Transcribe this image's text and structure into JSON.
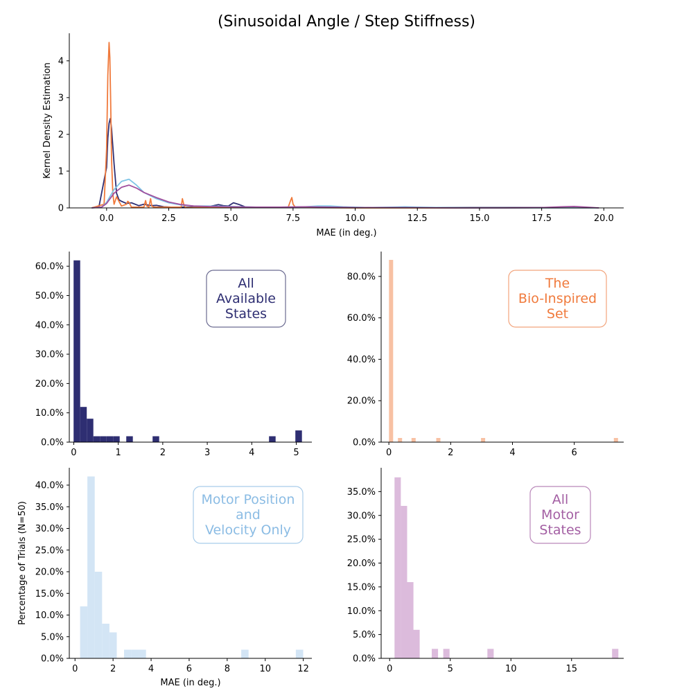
{
  "figure": {
    "title": "(Sinusoidal Angle / Step Stiffness)"
  },
  "chart_data": [
    {
      "id": "kde",
      "type": "line",
      "title": "",
      "xlabel": "MAE (in deg.)",
      "ylabel": "Kernel Density Estimation",
      "xlim": [
        -1.5,
        20.8
      ],
      "ylim": [
        0,
        4.75
      ],
      "xticks": [
        0.0,
        2.5,
        5.0,
        7.5,
        10.0,
        12.5,
        15.0,
        17.5,
        20.0
      ],
      "xtick_labels": [
        "0.0",
        "2.5",
        "5.0",
        "7.5",
        "10.0",
        "12.5",
        "15.0",
        "17.5",
        "20.0"
      ],
      "yticks": [
        0,
        1,
        2,
        3,
        4
      ],
      "ytick_labels": [
        "0",
        "1",
        "2",
        "3",
        "4"
      ],
      "grid": false,
      "series": [
        {
          "color": "#2e2e72",
          "x": [
            -0.6,
            -0.3,
            0.0,
            0.05,
            0.1,
            0.15,
            0.2,
            0.3,
            0.4,
            0.5,
            0.6,
            0.8,
            1.0,
            1.3,
            1.5,
            1.8,
            2.0,
            2.3,
            2.6,
            3.0,
            3.5,
            4.0,
            4.3,
            4.5,
            4.7,
            4.9,
            5.1,
            5.3,
            5.6,
            6.0,
            8.0,
            10.0,
            12.0,
            14.0,
            16.0,
            18.0,
            19.8
          ],
          "y": [
            0.0,
            0.05,
            1.1,
            1.9,
            2.3,
            2.43,
            2.15,
            1.2,
            0.4,
            0.22,
            0.18,
            0.12,
            0.14,
            0.06,
            0.1,
            0.06,
            0.07,
            0.03,
            0.02,
            0.02,
            0.02,
            0.03,
            0.06,
            0.09,
            0.06,
            0.05,
            0.14,
            0.1,
            0.02,
            0.01,
            0.01,
            0.01,
            0.01,
            0.01,
            0.01,
            0.01,
            0.0
          ]
        },
        {
          "color": "#f07a3c",
          "x": [
            -0.6,
            -0.1,
            0.0,
            0.05,
            0.1,
            0.13,
            0.16,
            0.2,
            0.25,
            0.3,
            0.4,
            0.6,
            0.8,
            0.85,
            0.9,
            1.0,
            1.1,
            1.5,
            1.57,
            1.62,
            1.7,
            1.77,
            1.82,
            1.9,
            2.5,
            3.0,
            3.05,
            3.12,
            3.2,
            3.3,
            5.0,
            7.3,
            7.4,
            7.45,
            7.5,
            7.6,
            10.0,
            15.0,
            19.8
          ],
          "y": [
            0.0,
            0.1,
            1.6,
            3.6,
            4.5,
            4.1,
            3.0,
            1.3,
            0.4,
            0.1,
            0.3,
            0.05,
            0.1,
            0.18,
            0.15,
            0.02,
            0.02,
            0.02,
            0.2,
            0.05,
            0.02,
            0.25,
            0.05,
            0.02,
            0.02,
            0.02,
            0.25,
            0.05,
            0.01,
            0.01,
            0.01,
            0.01,
            0.2,
            0.28,
            0.1,
            0.01,
            0.0,
            0.0,
            0.0
          ]
        },
        {
          "color": "#7ec4e6",
          "x": [
            -0.6,
            -0.2,
            0.0,
            0.3,
            0.6,
            0.9,
            1.2,
            1.5,
            2.0,
            2.5,
            3.0,
            3.5,
            4.0,
            5.0,
            6.0,
            7.0,
            8.0,
            8.5,
            9.0,
            9.5,
            10.5,
            11.5,
            12.0,
            12.5,
            13.5,
            15.0,
            17.0,
            19.8
          ],
          "y": [
            0.0,
            0.02,
            0.15,
            0.5,
            0.72,
            0.78,
            0.62,
            0.42,
            0.25,
            0.14,
            0.08,
            0.05,
            0.05,
            0.04,
            0.02,
            0.02,
            0.03,
            0.05,
            0.05,
            0.03,
            0.01,
            0.02,
            0.03,
            0.02,
            0.01,
            0.0,
            0.0,
            0.0
          ]
        },
        {
          "color": "#a14f9e",
          "x": [
            -0.6,
            -0.2,
            0.0,
            0.3,
            0.6,
            0.9,
            1.2,
            1.5,
            2.0,
            2.5,
            3.0,
            3.5,
            4.0,
            5.0,
            6.0,
            7.0,
            8.0,
            9.0,
            10.0,
            12.0,
            14.0,
            16.0,
            17.5,
            18.3,
            18.8,
            19.3,
            19.8
          ],
          "y": [
            0.0,
            0.02,
            0.12,
            0.4,
            0.56,
            0.62,
            0.54,
            0.42,
            0.28,
            0.16,
            0.09,
            0.05,
            0.04,
            0.03,
            0.02,
            0.02,
            0.03,
            0.02,
            0.01,
            0.01,
            0.0,
            0.0,
            0.01,
            0.03,
            0.04,
            0.02,
            0.0
          ]
        }
      ]
    },
    {
      "id": "hist_all_available",
      "type": "bar",
      "title": "",
      "annotation": [
        "All",
        "Available",
        "States"
      ],
      "xlabel": "",
      "ylabel": "",
      "color": "#2e2e72",
      "xlim": [
        -0.1,
        5.35
      ],
      "ylim": [
        0,
        65
      ],
      "xticks": [
        0,
        1,
        2,
        3,
        4,
        5
      ],
      "xtick_labels": [
        "0",
        "1",
        "2",
        "3",
        "4",
        "5"
      ],
      "yticks": [
        0,
        10,
        20,
        30,
        40,
        50,
        60
      ],
      "ytick_labels": [
        "0.0%",
        "10.0%",
        "20.0%",
        "30.0%",
        "40.0%",
        "50.0%",
        "60.0%"
      ],
      "bin_width": 0.148,
      "x": [
        0.07,
        0.218,
        0.366,
        0.514,
        0.662,
        0.81,
        0.958,
        1.254,
        1.846,
        4.462,
        5.054
      ],
      "values": [
        62,
        12,
        8,
        2,
        2,
        2,
        2,
        2,
        2,
        2,
        4
      ]
    },
    {
      "id": "hist_bio_inspired",
      "type": "bar",
      "title": "",
      "annotation": [
        "The",
        "Bio-Inspired",
        "Set"
      ],
      "xlabel": "",
      "ylabel": "",
      "color": "#f8c1a3",
      "xlim": [
        -0.25,
        7.6
      ],
      "ylim": [
        0,
        92
      ],
      "xticks": [
        0,
        2,
        4,
        6
      ],
      "xtick_labels": [
        "0",
        "2",
        "4",
        "6"
      ],
      "yticks": [
        0,
        20,
        40,
        60,
        80
      ],
      "ytick_labels": [
        "0.0%",
        "20.0%",
        "40.0%",
        "60.0%",
        "80.0%"
      ],
      "bin_width": 0.135,
      "x": [
        0.07,
        0.36,
        0.8,
        1.6,
        3.05,
        7.35
      ],
      "values": [
        88,
        2,
        2,
        2,
        2,
        2
      ]
    },
    {
      "id": "hist_motor_pos_vel",
      "type": "bar",
      "title": "",
      "annotation": [
        "Motor Position",
        "and",
        "Velocity Only"
      ],
      "xlabel": "MAE (in deg.)",
      "ylabel": "Percentage of Trials (N=50)",
      "color": "#d3e5f5",
      "xlim": [
        -0.3,
        12.45
      ],
      "ylim": [
        0,
        44
      ],
      "xticks": [
        0,
        2,
        4,
        6,
        8,
        10,
        12
      ],
      "xtick_labels": [
        "0",
        "2",
        "4",
        "6",
        "8",
        "10",
        "12"
      ],
      "yticks": [
        0,
        5,
        10,
        15,
        20,
        25,
        30,
        35,
        40
      ],
      "ytick_labels": [
        "0.0%",
        "5.0%",
        "10.0%",
        "15.0%",
        "20.0%",
        "25.0%",
        "30.0%",
        "35.0%",
        "40.0%"
      ],
      "bin_width": 0.385,
      "x": [
        0.46,
        0.845,
        1.23,
        1.615,
        2.0,
        2.77,
        3.155,
        3.54,
        8.93,
        11.8
      ],
      "values": [
        12,
        42,
        20,
        8,
        6,
        2,
        2,
        2,
        2,
        2
      ]
    },
    {
      "id": "hist_all_motor",
      "type": "bar",
      "title": "",
      "annotation": [
        "All",
        "Motor",
        "States"
      ],
      "xlabel": "",
      "ylabel": "",
      "color": "#dcbbdc",
      "xlim": [
        -0.7,
        19.3
      ],
      "ylim": [
        0,
        40
      ],
      "xticks": [
        0,
        5,
        10,
        15
      ],
      "xtick_labels": [
        "0",
        "5",
        "10",
        "15"
      ],
      "yticks": [
        0,
        5,
        10,
        15,
        20,
        25,
        30,
        35
      ],
      "ytick_labels": [
        "0.0%",
        "5.0%",
        "10.0%",
        "15.0%",
        "20.0%",
        "25.0%",
        "30.0%",
        "35.0%"
      ],
      "bin_width": 0.52,
      "x": [
        0.66,
        1.18,
        1.7,
        2.22,
        3.73,
        4.68,
        8.32,
        18.6
      ],
      "values": [
        38,
        32,
        16,
        6,
        2,
        2,
        2,
        2
      ]
    }
  ],
  "panel_styles": {
    "hist_all_available": {
      "text_color": "#2e2e72",
      "box_color": "#6a6a90"
    },
    "hist_bio_inspired": {
      "text_color": "#f07a3c",
      "box_color": "#f2a47c"
    },
    "hist_motor_pos_vel": {
      "text_color": "#8bbce4",
      "box_color": "#a8ccea"
    },
    "hist_all_motor": {
      "text_color": "#a35fa3",
      "box_color": "#b987b9"
    }
  }
}
